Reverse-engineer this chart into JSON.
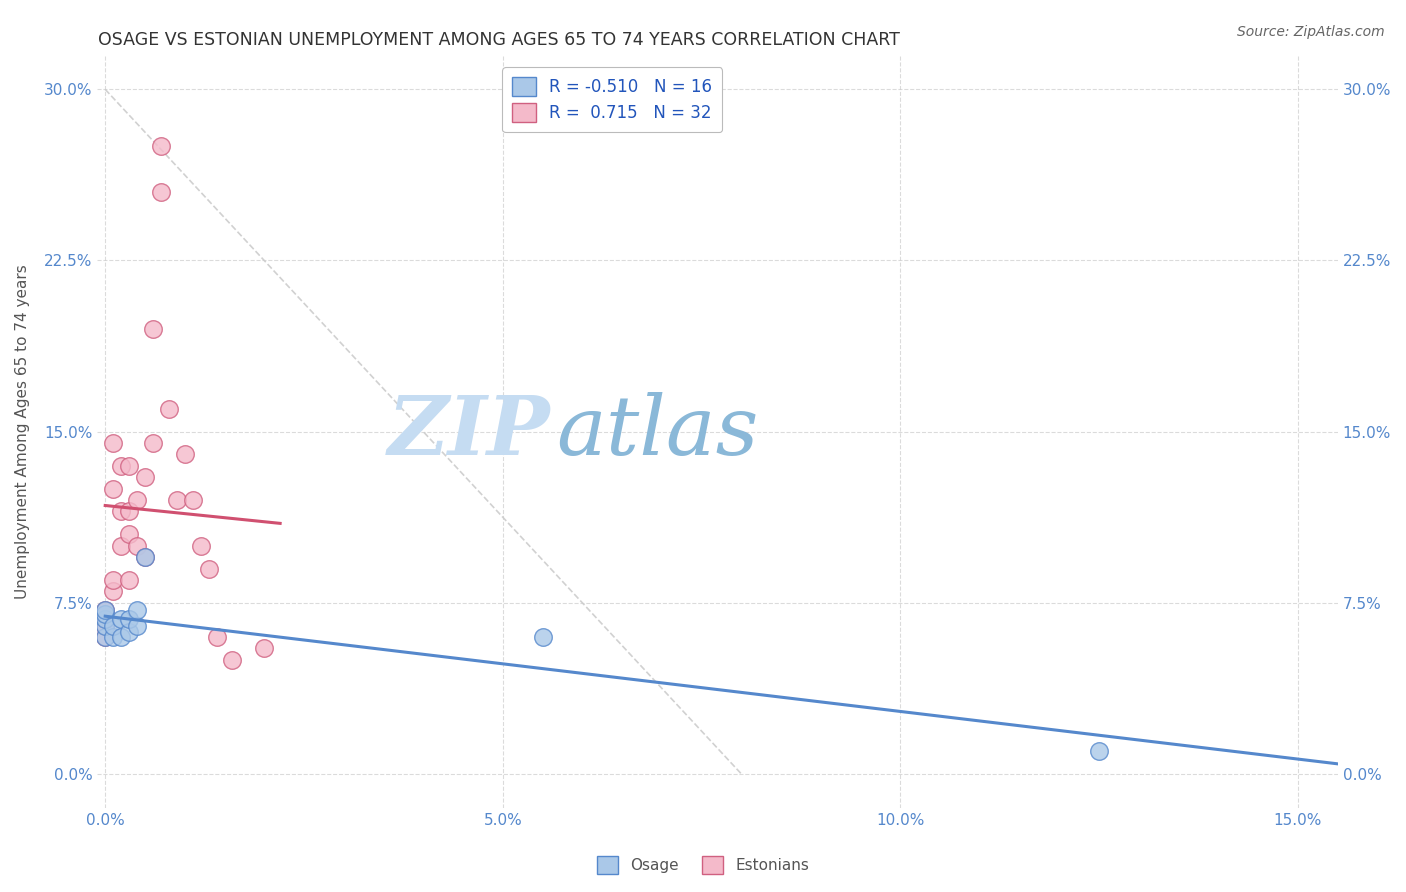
{
  "title": "OSAGE VS ESTONIAN UNEMPLOYMENT AMONG AGES 65 TO 74 YEARS CORRELATION CHART",
  "source": "Source: ZipAtlas.com",
  "ylabel": "Unemployment Among Ages 65 to 74 years",
  "xlim": [
    -0.001,
    0.155
  ],
  "ylim": [
    -0.015,
    0.315
  ],
  "xticks": [
    0.0,
    0.05,
    0.1,
    0.15
  ],
  "xticklabels": [
    "0.0%",
    "5.0%",
    "10.0%",
    "15.0%"
  ],
  "yticks": [
    0.0,
    0.075,
    0.15,
    0.225,
    0.3
  ],
  "yticklabels": [
    "0.0%",
    "7.5%",
    "15.0%",
    "22.5%",
    "30.0%"
  ],
  "osage_x": [
    0.0,
    0.0,
    0.0,
    0.0,
    0.0,
    0.001,
    0.001,
    0.002,
    0.002,
    0.003,
    0.003,
    0.004,
    0.004,
    0.005,
    0.055,
    0.125
  ],
  "osage_y": [
    0.06,
    0.065,
    0.068,
    0.07,
    0.072,
    0.06,
    0.065,
    0.06,
    0.068,
    0.062,
    0.068,
    0.065,
    0.072,
    0.095,
    0.06,
    0.01
  ],
  "estonian_x": [
    0.0,
    0.0,
    0.0,
    0.0,
    0.001,
    0.001,
    0.001,
    0.001,
    0.002,
    0.002,
    0.002,
    0.003,
    0.003,
    0.003,
    0.003,
    0.004,
    0.004,
    0.005,
    0.005,
    0.006,
    0.006,
    0.007,
    0.007,
    0.008,
    0.009,
    0.01,
    0.011,
    0.012,
    0.013,
    0.014,
    0.016,
    0.02
  ],
  "estonian_y": [
    0.06,
    0.065,
    0.068,
    0.072,
    0.08,
    0.085,
    0.125,
    0.145,
    0.1,
    0.115,
    0.135,
    0.085,
    0.105,
    0.115,
    0.135,
    0.1,
    0.12,
    0.095,
    0.13,
    0.145,
    0.195,
    0.255,
    0.275,
    0.16,
    0.12,
    0.14,
    0.12,
    0.1,
    0.09,
    0.06,
    0.05,
    0.055
  ],
  "osage_fill": "#aac8e8",
  "osage_edge": "#5588cc",
  "estonian_fill": "#f4baca",
  "estonian_edge": "#d06080",
  "osage_line": "#5588cc",
  "estonian_line": "#d05070",
  "diag_color": "#cccccc",
  "R_osage": -0.51,
  "N_osage": 16,
  "R_estonian": 0.715,
  "N_estonian": 32,
  "watermark_zip_color": "#b8d4ef",
  "watermark_atlas_color": "#88aacc",
  "bg_color": "#ffffff",
  "grid_color": "#cccccc",
  "title_color": "#333333",
  "label_color": "#555555",
  "tick_color": "#5588cc",
  "legend_r_color": "#2255bb",
  "legend_n_color": "#2255bb"
}
